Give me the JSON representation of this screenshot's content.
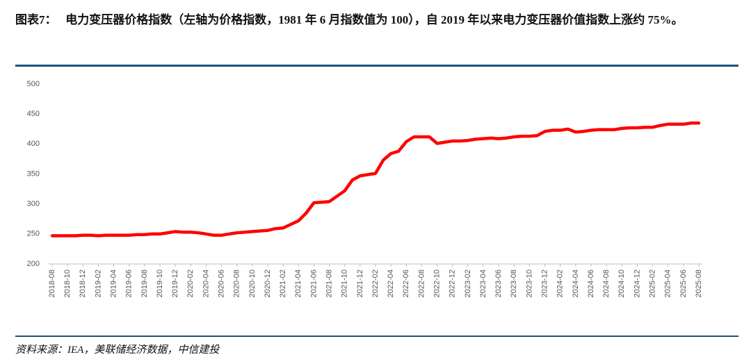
{
  "chart_data": {
    "type": "line",
    "title": "图表7：   电力变压器价格指数（左轴为价格指数，1981 年 6 月指数值为 100），自 2019 年以来电力变压器价值指数上涨约 75%。",
    "source": "资料来源：IEA，美联储经济数据，中信建投",
    "categories": [
      "2018-08",
      null,
      "2018-10",
      null,
      "2018-12",
      null,
      "2019-02",
      null,
      "2019-04",
      null,
      "2019-06",
      null,
      "2019-08",
      null,
      "2019-10",
      null,
      "2019-12",
      null,
      "2020-02",
      null,
      "2020-04",
      null,
      "2020-06",
      null,
      "2020-08",
      null,
      "2020-10",
      null,
      "2020-12",
      null,
      "2021-02",
      null,
      "2021-04",
      null,
      "2021-06",
      null,
      "2021-08",
      null,
      "2021-10",
      null,
      "2021-12",
      null,
      "2022-02",
      null,
      "2022-04",
      null,
      "2022-06",
      null,
      "2022-08",
      null,
      "2022-10",
      null,
      "2022-12",
      null,
      "2023-02",
      null,
      "2023-04",
      null,
      "2023-06",
      null,
      "2023-08",
      null,
      "2023-10",
      null,
      "2023-12",
      null,
      "2024-02",
      null,
      "2024-04",
      null,
      "2024-06",
      null,
      "2024-08",
      null,
      "2024-10",
      null,
      "2024-12",
      null,
      "2025-02",
      null,
      "2025-04",
      null,
      "2025-06",
      null,
      "2025-08"
    ],
    "series": [
      {
        "color": "#ff0000",
        "values": [
          247,
          247,
          247,
          247,
          248,
          248,
          247,
          248,
          248,
          248,
          248,
          249,
          249,
          250,
          250,
          252,
          254,
          253,
          253,
          252,
          250,
          248,
          248,
          250,
          252,
          253,
          254,
          255,
          256,
          259,
          260,
          266,
          272,
          285,
          302,
          303,
          304,
          313,
          322,
          340,
          347,
          349,
          351,
          373,
          384,
          388,
          404,
          412,
          412,
          412,
          401,
          403,
          405,
          405,
          406,
          408,
          409,
          410,
          409,
          410,
          412,
          413,
          413,
          414,
          421,
          423,
          423,
          425,
          420,
          421,
          423,
          424,
          424,
          424,
          426,
          427,
          427,
          428,
          428,
          431,
          433,
          433,
          433,
          435,
          435
        ]
      }
    ],
    "ylim": [
      200,
      500
    ],
    "yticks": [
      200,
      250,
      300,
      350,
      400,
      450,
      500
    ],
    "grid": false
  }
}
